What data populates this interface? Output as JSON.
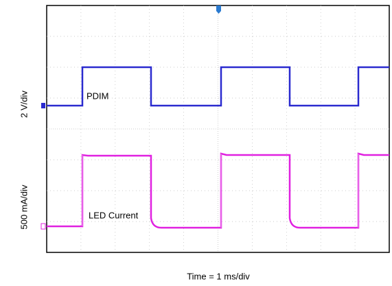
{
  "scope": {
    "channel_1_scale": "2 V/div",
    "channel_4_scale": "500 mA/div",
    "channel_1_label": "PDIM",
    "channel_4_label": "LED Current",
    "time_scale": "Time = 1 ms/div"
  }
}
